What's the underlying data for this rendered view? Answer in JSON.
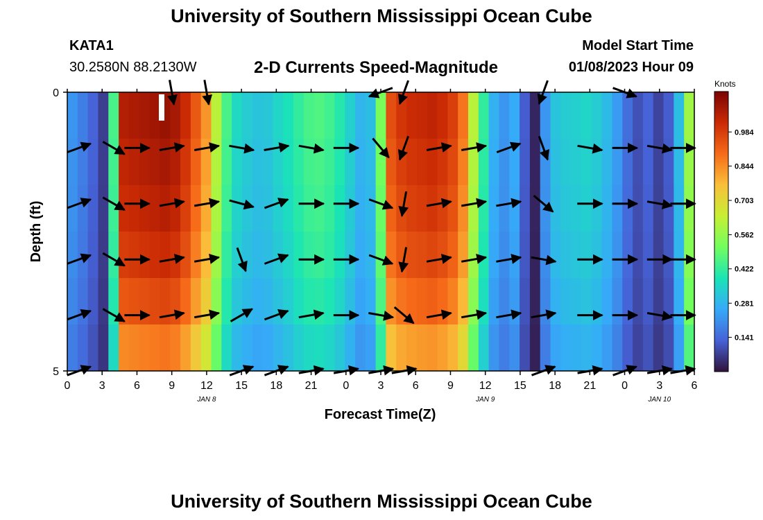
{
  "header": {
    "title": "University of Southern Mississippi Ocean Cube",
    "footer_title": "University of Southern Mississippi Ocean Cube",
    "station": "KATA1",
    "coordinates": "30.2580N  88.2130W",
    "plot_title": "2-D Currents Speed-Magnitude",
    "model_start_label": "Model Start Time",
    "model_start_value": "01/08/2023 Hour 09"
  },
  "chart_data": {
    "type": "heatmap",
    "title": "2-D Currents Speed-Magnitude",
    "xlabel": "Forecast Time(Z)",
    "ylabel": "Depth (ft)",
    "x_ticks": [
      "0",
      "3",
      "6",
      "9",
      "12",
      "15",
      "18",
      "21",
      "0",
      "3",
      "6",
      "9",
      "12",
      "15",
      "18",
      "21",
      "0",
      "3",
      "6"
    ],
    "x_range": [
      0,
      54
    ],
    "y_ticks": [
      "0",
      "5"
    ],
    "y_range": [
      0,
      5
    ],
    "date_labels": [
      {
        "text": "JAN 8",
        "hour": 12
      },
      {
        "text": "JAN 9",
        "hour": 36
      },
      {
        "text": "JAN 10",
        "hour": 51
      }
    ],
    "colorbar": {
      "label": "Knots",
      "ticks": [
        "0.984",
        "0.844",
        "0.703",
        "0.562",
        "0.422",
        "0.281",
        "0.141"
      ],
      "tick_values": [
        0.984,
        0.844,
        0.703,
        0.562,
        0.422,
        0.281,
        0.141
      ],
      "range": [
        0.0,
        1.15
      ],
      "stops": [
        "#30123b",
        "#4662d7",
        "#36aaf9",
        "#1ae4b6",
        "#72fe5e",
        "#c7ef34",
        "#fabf3a",
        "#f66b19",
        "#ca2a04",
        "#7a0403"
      ]
    },
    "speed_profile_knots": [
      0.22,
      0.18,
      0.13,
      0.07,
      0.45,
      1.06,
      1.07,
      1.08,
      1.09,
      1.1,
      1.08,
      1.02,
      0.93,
      0.83,
      0.62,
      0.45,
      0.36,
      0.33,
      0.31,
      0.32,
      0.35,
      0.38,
      0.42,
      0.45,
      0.46,
      0.44,
      0.4,
      0.34,
      0.28,
      0.3,
      0.52,
      0.95,
      1.0,
      1.02,
      1.03,
      1.04,
      1.02,
      0.98,
      0.88,
      0.62,
      0.42,
      0.27,
      0.22,
      0.26,
      0.12,
      0.03,
      0.22,
      0.31,
      0.33,
      0.34,
      0.35,
      0.33,
      0.29,
      0.23,
      0.15,
      0.1,
      0.13,
      0.08,
      0.12,
      0.3,
      0.58
    ],
    "depth_row_factors": [
      1.0,
      0.98,
      0.96,
      0.93,
      0.88,
      0.8
    ],
    "vector_rows_depth_ft": [
      0,
      1,
      2,
      3,
      4,
      5
    ],
    "vector_times_hours": [
      1,
      4,
      6,
      9,
      12,
      15,
      18,
      21,
      24,
      27,
      29,
      32,
      35,
      38,
      41,
      45,
      48,
      51,
      53
    ],
    "vector_directions_deg": [
      [
        null,
        null,
        null,
        170,
        170,
        null,
        null,
        null,
        null,
        250,
        200,
        null,
        null,
        null,
        200,
        null,
        110,
        null,
        null
      ],
      [
        70,
        120,
        90,
        80,
        80,
        100,
        80,
        100,
        90,
        140,
        200,
        80,
        80,
        70,
        160,
        100,
        90,
        100,
        90
      ],
      [
        70,
        120,
        90,
        80,
        80,
        105,
        70,
        90,
        90,
        110,
        190,
        80,
        80,
        80,
        130,
        90,
        90,
        100,
        90
      ],
      [
        70,
        120,
        90,
        80,
        80,
        160,
        70,
        90,
        90,
        110,
        190,
        80,
        80,
        80,
        100,
        90,
        90,
        90,
        90
      ],
      [
        70,
        120,
        90,
        80,
        80,
        60,
        70,
        80,
        90,
        100,
        130,
        80,
        80,
        80,
        80,
        90,
        90,
        100,
        90
      ],
      [
        70,
        null,
        null,
        null,
        null,
        70,
        70,
        80,
        80,
        80,
        80,
        null,
        null,
        null,
        70,
        80,
        70,
        80,
        80
      ]
    ]
  }
}
